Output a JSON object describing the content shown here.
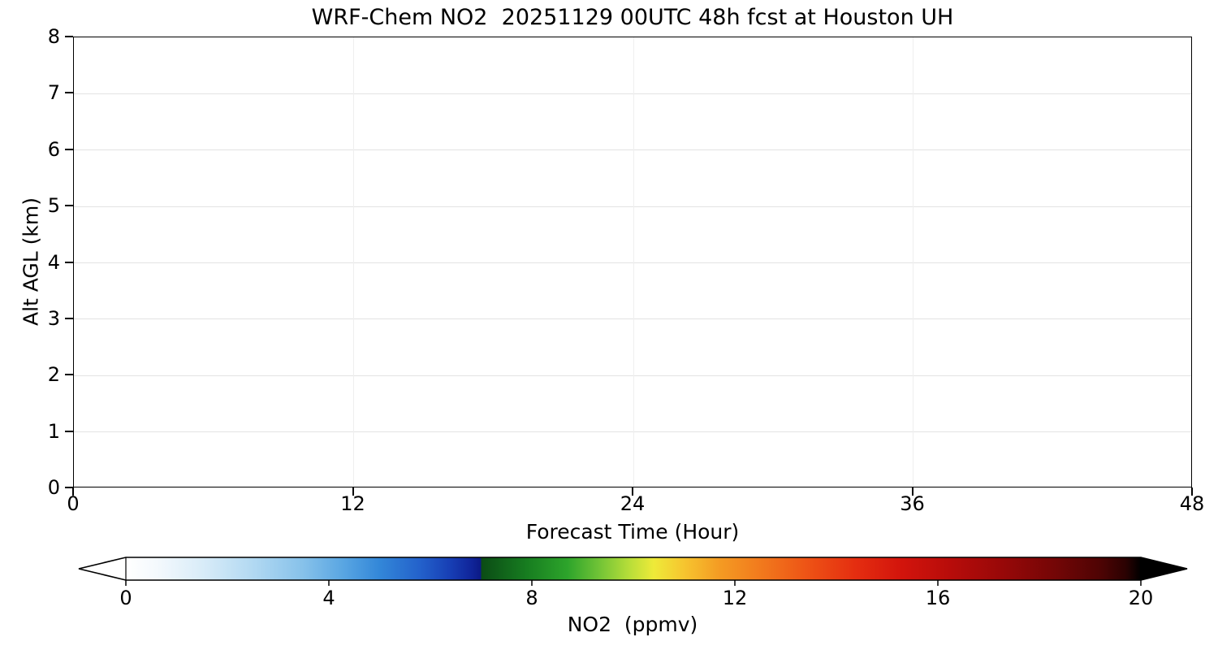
{
  "chart_data": {
    "type": "heatmap",
    "title": "WRF-Chem NO2  20251129 00UTC 48h fcst at Houston UH",
    "xlabel": "Forecast Time (Hour)",
    "ylabel": "Alt AGL (km)",
    "xlim": [
      0,
      48
    ],
    "ylim": [
      0,
      8
    ],
    "x_ticks": [
      0,
      12,
      24,
      36,
      48
    ],
    "y_ticks": [
      0,
      1,
      2,
      3,
      4,
      5,
      6,
      7,
      8
    ],
    "grid": true,
    "plot_area_content": "blank - no contour field visible (values at/below lowest contour level, rendered white)",
    "colorbar": {
      "label": "NO2  (ppmv)",
      "range": [
        0,
        20
      ],
      "ticks": [
        0,
        4,
        8,
        12,
        16,
        20
      ],
      "extend": "both",
      "under_color": "#ffffff",
      "over_color": "#000000",
      "stops": [
        {
          "v": 0.0,
          "color": "#ffffff"
        },
        {
          "v": 0.6,
          "color": "#f4f9fd"
        },
        {
          "v": 1.5,
          "color": "#d9ecf8"
        },
        {
          "v": 2.5,
          "color": "#b2d9f2"
        },
        {
          "v": 3.5,
          "color": "#86c1ea"
        },
        {
          "v": 4.3,
          "color": "#58a5e2"
        },
        {
          "v": 5.0,
          "color": "#3387d8"
        },
        {
          "v": 5.8,
          "color": "#2361cb"
        },
        {
          "v": 6.4,
          "color": "#173eb4"
        },
        {
          "v": 6.8,
          "color": "#10259a"
        },
        {
          "v": 6.99,
          "color": "#0c1a86"
        },
        {
          "v": 7.01,
          "color": "#0b4c15"
        },
        {
          "v": 7.9,
          "color": "#177d20"
        },
        {
          "v": 8.7,
          "color": "#2da42b"
        },
        {
          "v": 9.3,
          "color": "#6ec236"
        },
        {
          "v": 9.9,
          "color": "#b5dd39"
        },
        {
          "v": 10.4,
          "color": "#eeea39"
        },
        {
          "v": 11.0,
          "color": "#f6c52f"
        },
        {
          "v": 11.7,
          "color": "#f49b23"
        },
        {
          "v": 12.6,
          "color": "#f1761c"
        },
        {
          "v": 13.5,
          "color": "#ed5015"
        },
        {
          "v": 14.4,
          "color": "#e42d10"
        },
        {
          "v": 15.3,
          "color": "#d2140c"
        },
        {
          "v": 16.3,
          "color": "#b60c0a"
        },
        {
          "v": 17.3,
          "color": "#970808"
        },
        {
          "v": 18.3,
          "color": "#740606"
        },
        {
          "v": 19.2,
          "color": "#4e0404"
        },
        {
          "v": 19.7,
          "color": "#2b0202"
        },
        {
          "v": 20.0,
          "color": "#000000"
        }
      ]
    }
  }
}
